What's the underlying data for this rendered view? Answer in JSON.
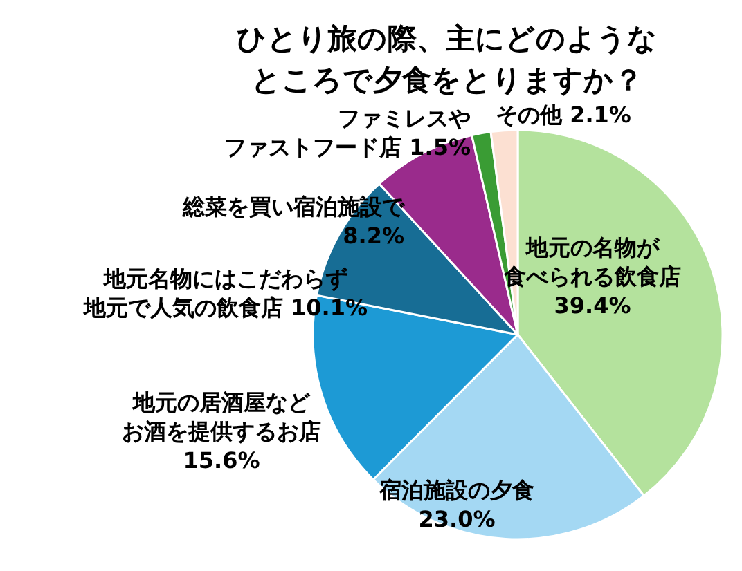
{
  "chart_data": {
    "type": "pie",
    "title": "ひとり旅の際、主にどのようなところで夕食をとりますか？",
    "categories": [
      "地元の名物が食べられる飲食店",
      "宿泊施設の夕食",
      "地元の居酒屋などお酒を提供するお店",
      "地元名物にはこだわらず地元で人気の飲食店",
      "総菜を買い宿泊施設で",
      "ファミレスやファストフード店",
      "その他"
    ],
    "values": [
      39.4,
      23.0,
      15.6,
      10.1,
      8.2,
      1.5,
      2.1
    ],
    "value_labels": [
      "39.4%",
      "23.0%",
      "15.6%",
      "10.1%",
      "8.2%",
      "1.5%",
      "2.1%"
    ],
    "colors": [
      "#b4e29d",
      "#a4d8f3",
      "#1d9ad5",
      "#176d95",
      "#9a2b8c",
      "#3a9c34",
      "#fce0d2"
    ],
    "legend": false
  }
}
